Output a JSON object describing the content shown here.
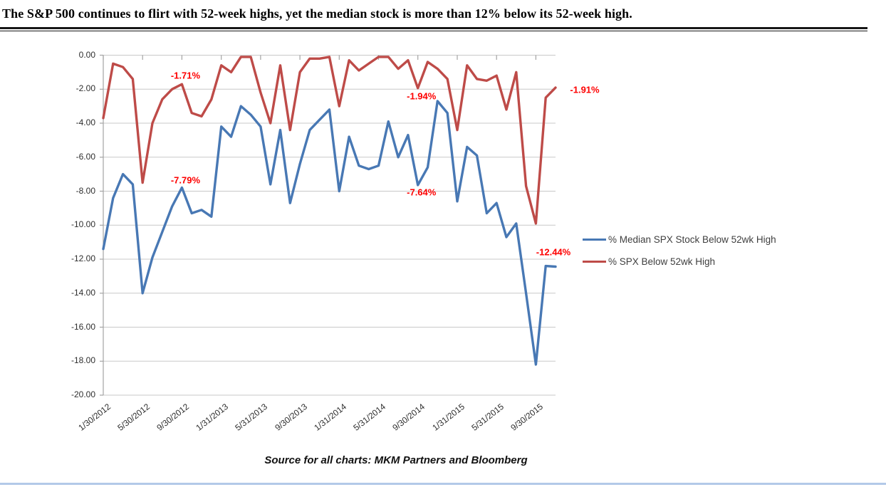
{
  "page": {
    "title": "The S&P 500 continues to flirt with 52-week highs, yet the median stock is more than 12% below its 52-week high.",
    "source_note": "Source for all charts: MKM Partners and Bloomberg"
  },
  "colors": {
    "series_median_blue": "#4878b4",
    "series_spx_red": "#be4b48",
    "data_label_red": "#fe0000",
    "gridline": "#c8c8c8",
    "axis": "#a3a3a3",
    "bottom_rule_blue": "#b3c9e8"
  },
  "chart_data": {
    "type": "line",
    "title": "",
    "xlabel": "",
    "ylabel": "",
    "ylim": [
      -20,
      0
    ],
    "grid": true,
    "legend_position": "right",
    "x_unit": "monthly points from 1/30/2012 to 11/30/2015",
    "x_tick_indices": [
      0,
      4,
      8,
      12,
      16,
      20,
      24,
      28,
      32,
      36,
      40,
      44
    ],
    "x_tick_labels": [
      "1/30/2012",
      "5/30/2012",
      "9/30/2012",
      "1/31/2013",
      "5/31/2013",
      "9/30/2013",
      "1/31/2014",
      "5/31/2014",
      "9/30/2014",
      "1/31/2015",
      "5/31/2015",
      "9/30/2015"
    ],
    "y_tick_labels": [
      "0.00",
      "-2.00",
      "-4.00",
      "-6.00",
      "-8.00",
      "-10.00",
      "-12.00",
      "-14.00",
      "-16.00",
      "-18.00",
      "-20.00"
    ],
    "series": [
      {
        "name": "% Median SPX Stock Below 52wk High",
        "color": "#4878b4",
        "values": [
          -11.4,
          -8.4,
          -7.0,
          -7.6,
          -14.0,
          -11.9,
          -10.4,
          -8.9,
          -7.79,
          -9.3,
          -9.1,
          -9.5,
          -4.2,
          -4.8,
          -3.0,
          -3.5,
          -4.2,
          -7.6,
          -4.4,
          -8.7,
          -6.4,
          -4.4,
          -3.8,
          -3.2,
          -8.0,
          -4.8,
          -6.5,
          -6.7,
          -6.5,
          -3.9,
          -6.0,
          -4.7,
          -7.64,
          -6.6,
          -2.7,
          -3.4,
          -8.6,
          -5.4,
          -5.9,
          -9.3,
          -8.7,
          -10.7,
          -9.9,
          -14.0,
          -18.2,
          -12.4,
          -12.44
        ]
      },
      {
        "name": "% SPX Below 52wk High",
        "color": "#be4b48",
        "values": [
          -3.7,
          -0.5,
          -0.7,
          -1.4,
          -7.5,
          -4.0,
          -2.6,
          -2.0,
          -1.71,
          -3.4,
          -3.6,
          -2.6,
          -0.6,
          -1.0,
          -0.1,
          -0.1,
          -2.2,
          -4.0,
          -0.6,
          -4.4,
          -1.0,
          -0.2,
          -0.2,
          -0.1,
          -3.0,
          -0.3,
          -0.9,
          -0.5,
          -0.1,
          -0.1,
          -0.8,
          -0.3,
          -1.94,
          -0.4,
          -0.8,
          -1.4,
          -4.4,
          -0.6,
          -1.4,
          -1.5,
          -1.2,
          -3.2,
          -1.0,
          -7.7,
          -9.9,
          -2.5,
          -1.91
        ]
      }
    ],
    "annotations": [
      {
        "text": "-1.71%",
        "series_index": 1,
        "point_index": 8
      },
      {
        "text": "-7.79%",
        "series_index": 0,
        "point_index": 8
      },
      {
        "text": "-1.94%",
        "series_index": 1,
        "point_index": 32
      },
      {
        "text": "-7.64%",
        "series_index": 0,
        "point_index": 32
      },
      {
        "text": "-1.91%",
        "series_index": 1,
        "point_index": 46
      },
      {
        "text": "-12.44%",
        "series_index": 0,
        "point_index": 46
      }
    ]
  }
}
